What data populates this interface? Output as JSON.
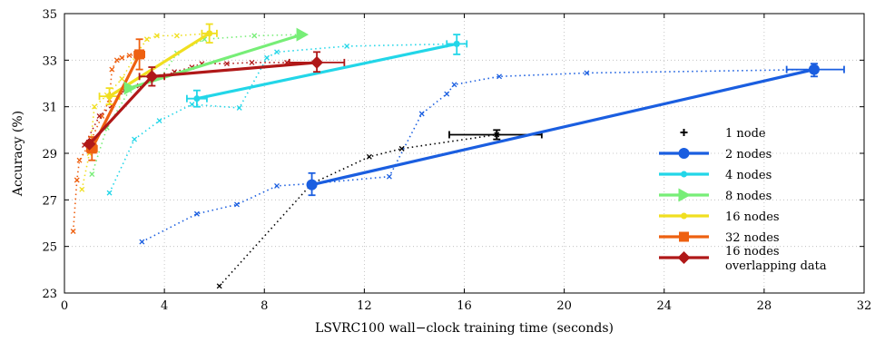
{
  "chart_data": {
    "type": "scatter",
    "xlabel": "LSVRC100 wall−clock training time (seconds)",
    "ylabel": "Accuracy (%)",
    "xlim": [
      0,
      32
    ],
    "ylim": [
      23,
      35
    ],
    "xticks": [
      0,
      4,
      8,
      12,
      16,
      20,
      24,
      28,
      32
    ],
    "yticks": [
      23,
      25,
      27,
      29,
      31,
      33,
      35
    ],
    "grid": true,
    "legend_position": "bottom-right",
    "series": [
      {
        "name": "1 node",
        "color": "#000000",
        "marker": "plus",
        "trace": [
          [
            6.2,
            23.3
          ],
          [
            9.9,
            27.7
          ],
          [
            12.2,
            28.85
          ],
          [
            13.5,
            29.2
          ],
          [
            17.3,
            29.8
          ]
        ],
        "main": [
          [
            17.3,
            29.8
          ]
        ],
        "xerr": [
          [
            15.4,
            19.1
          ]
        ],
        "yerr": [
          [
            29.6,
            30.0
          ]
        ]
      },
      {
        "name": "2 nodes",
        "color": "#1a5ee0",
        "marker": "circle",
        "trace": [
          [
            3.1,
            25.2
          ],
          [
            5.3,
            26.4
          ],
          [
            6.9,
            26.8
          ],
          [
            8.5,
            27.6
          ],
          [
            9.9,
            27.7
          ],
          [
            13.0,
            28.0
          ],
          [
            14.3,
            30.7
          ],
          [
            15.3,
            31.55
          ],
          [
            15.6,
            31.95
          ],
          [
            17.4,
            32.3
          ],
          [
            20.9,
            32.45
          ],
          [
            30.0,
            32.6
          ]
        ],
        "main": [
          [
            9.9,
            27.65
          ],
          [
            30.0,
            32.6
          ]
        ],
        "xerr": [
          null,
          [
            28.9,
            31.2
          ]
        ],
        "yerr": [
          [
            27.2,
            28.15
          ],
          [
            32.3,
            32.85
          ]
        ]
      },
      {
        "name": "4 nodes",
        "color": "#22d6e8",
        "marker": "dot",
        "trace": [
          [
            1.8,
            27.3
          ],
          [
            2.8,
            29.6
          ],
          [
            3.8,
            30.4
          ],
          [
            5.1,
            31.1
          ],
          [
            7.0,
            30.95
          ],
          [
            8.1,
            33.1
          ],
          [
            8.5,
            33.35
          ],
          [
            11.3,
            33.6
          ],
          [
            15.7,
            33.7
          ]
        ],
        "main": [
          [
            5.3,
            31.35
          ],
          [
            15.7,
            33.7
          ]
        ],
        "xerr": [
          [
            4.9,
            5.7
          ],
          [
            15.3,
            16.1
          ]
        ],
        "yerr": [
          [
            31.0,
            31.7
          ],
          [
            33.25,
            34.1
          ]
        ]
      },
      {
        "name": "8 nodes",
        "color": "#77ee77",
        "marker": "triangle-right",
        "trace": [
          [
            1.1,
            28.1
          ],
          [
            1.7,
            30.1
          ],
          [
            2.6,
            31.7
          ],
          [
            3.9,
            32.3
          ],
          [
            4.5,
            33.3
          ],
          [
            5.6,
            33.9
          ],
          [
            7.6,
            34.05
          ],
          [
            9.5,
            34.1
          ]
        ],
        "main": [
          [
            2.6,
            31.8
          ],
          [
            9.5,
            34.1
          ]
        ],
        "xerr": [
          null,
          null
        ],
        "yerr": [
          null,
          null
        ]
      },
      {
        "name": "16 nodes",
        "color": "#f0df20",
        "marker": "dot",
        "trace": [
          [
            0.7,
            27.45
          ],
          [
            1.0,
            29.0
          ],
          [
            1.2,
            31.0
          ],
          [
            1.7,
            31.5
          ],
          [
            2.3,
            32.2
          ],
          [
            2.9,
            33.3
          ],
          [
            3.3,
            33.9
          ],
          [
            3.7,
            34.05
          ],
          [
            4.5,
            34.05
          ],
          [
            5.8,
            34.15
          ]
        ],
        "main": [
          [
            1.8,
            31.45
          ],
          [
            5.8,
            34.15
          ]
        ],
        "xerr": [
          [
            1.4,
            2.2
          ],
          [
            5.5,
            6.1
          ]
        ],
        "yerr": [
          [
            31.1,
            31.8
          ],
          [
            33.75,
            34.55
          ]
        ]
      },
      {
        "name": "32 nodes",
        "color": "#ee6010",
        "marker": "square",
        "trace": [
          [
            0.35,
            25.65
          ],
          [
            0.5,
            27.85
          ],
          [
            0.6,
            28.7
          ],
          [
            1.0,
            29.4
          ],
          [
            1.5,
            30.6
          ],
          [
            1.8,
            31.3
          ],
          [
            1.9,
            32.6
          ],
          [
            2.1,
            33.0
          ],
          [
            2.3,
            33.1
          ],
          [
            2.6,
            33.2
          ],
          [
            3.0,
            33.25
          ]
        ],
        "main": [
          [
            1.1,
            29.2
          ],
          [
            3.0,
            33.25
          ]
        ],
        "xerr": [
          [
            0.9,
            1.3
          ],
          [
            2.8,
            3.2
          ]
        ],
        "yerr": [
          [
            28.7,
            29.7
          ],
          [
            32.6,
            33.9
          ]
        ]
      },
      {
        "name": "16 nodes overlapping data",
        "color": "#b01818",
        "marker": "diamond",
        "trace": [
          [
            0.8,
            29.35
          ],
          [
            1.4,
            30.6
          ],
          [
            1.9,
            31.05
          ],
          [
            2.4,
            31.7
          ],
          [
            3.0,
            31.9
          ],
          [
            4.4,
            32.5
          ],
          [
            5.1,
            32.7
          ],
          [
            5.5,
            32.85
          ],
          [
            6.5,
            32.85
          ],
          [
            7.5,
            32.9
          ],
          [
            8.9,
            32.9
          ],
          [
            10.1,
            32.9
          ]
        ],
        "main": [
          [
            1.0,
            29.4
          ],
          [
            3.5,
            32.3
          ],
          [
            10.1,
            32.9
          ]
        ],
        "xerr": [
          null,
          [
            3.0,
            4.0
          ],
          [
            9.0,
            11.2
          ]
        ],
        "yerr": [
          null,
          [
            31.9,
            32.7
          ],
          [
            32.5,
            33.35
          ]
        ]
      }
    ]
  }
}
